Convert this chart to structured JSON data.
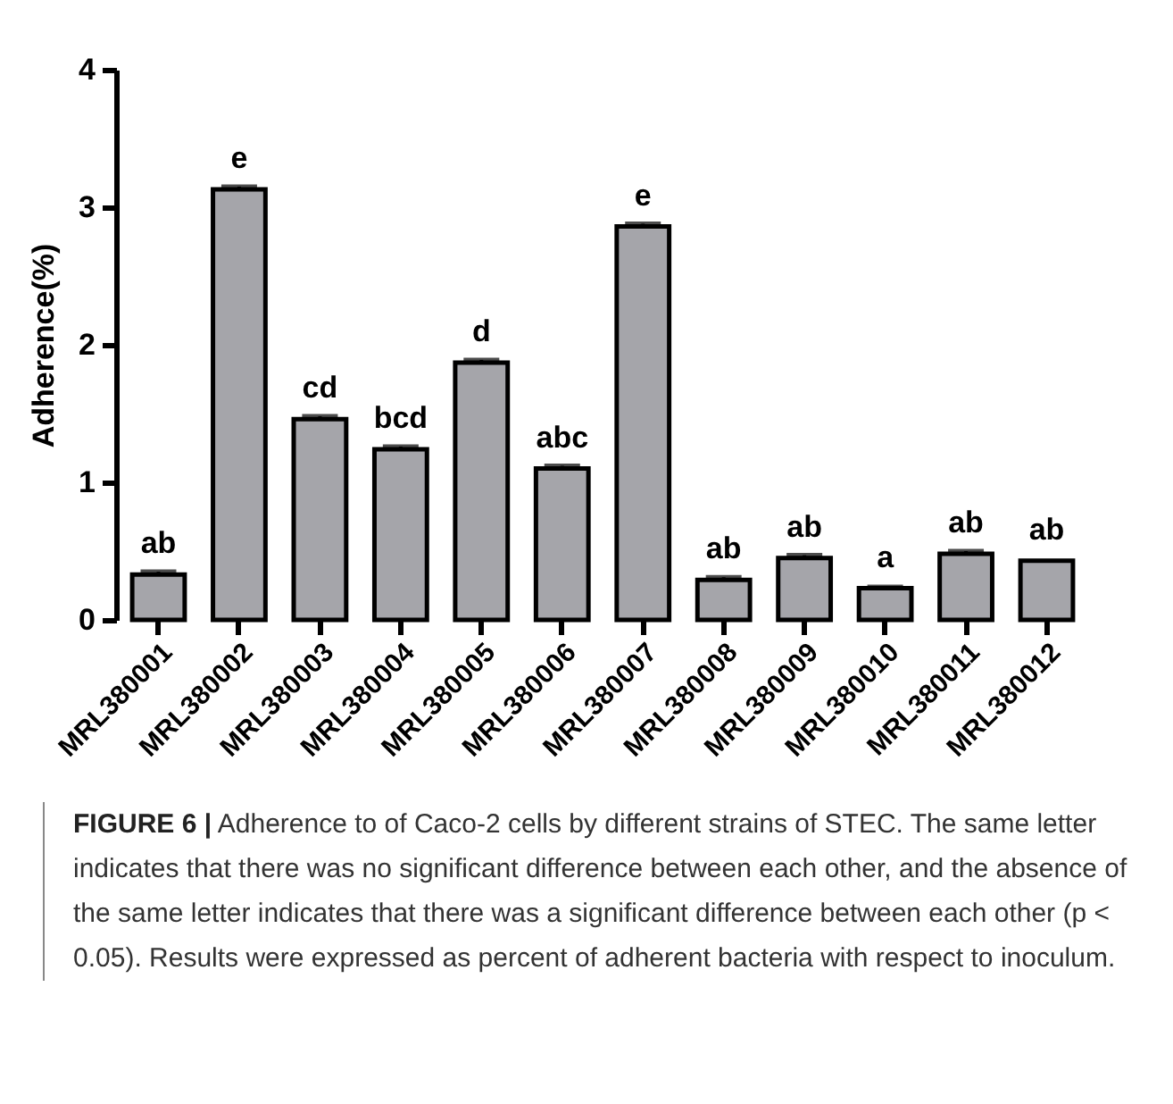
{
  "chart_data": {
    "type": "bar",
    "ylabel": "Adherence(%)",
    "categories": [
      "MRL380001",
      "MRL380002",
      "MRL380003",
      "MRL380004",
      "MRL380005",
      "MRL380006",
      "MRL380007",
      "MRL380008",
      "MRL380009",
      "MRL380010",
      "MRL380011",
      "MRL380012"
    ],
    "values": [
      0.33,
      3.13,
      1.46,
      1.24,
      1.87,
      1.1,
      2.86,
      0.29,
      0.45,
      0.23,
      0.48,
      0.43
    ],
    "errors": [
      0.02,
      0.02,
      0.02,
      0.02,
      0.02,
      0.02,
      0.02,
      0.02,
      0.02,
      0.01,
      0.02,
      null
    ],
    "color": "#a5a5aa",
    "ylim": [
      0,
      4
    ],
    "yticks": [
      0,
      1,
      2,
      3,
      4
    ],
    "grid": false,
    "annotations": [
      {
        "text": "ab",
        "x": "MRL380001",
        "y": 0.33
      },
      {
        "text": "e",
        "x": "MRL380002",
        "y": 3.13
      },
      {
        "text": "cd",
        "x": "MRL380003",
        "y": 1.46
      },
      {
        "text": "bcd",
        "x": "MRL380004",
        "y": 1.24
      },
      {
        "text": "d",
        "x": "MRL380005",
        "y": 1.87
      },
      {
        "text": "abc",
        "x": "MRL380006",
        "y": 1.1
      },
      {
        "text": "e",
        "x": "MRL380007",
        "y": 2.86
      },
      {
        "text": "ab",
        "x": "MRL380008",
        "y": 0.29
      },
      {
        "text": "ab",
        "x": "MRL380009",
        "y": 0.45
      },
      {
        "text": "a",
        "x": "MRL380010",
        "y": 0.23
      },
      {
        "text": "ab",
        "x": "MRL380011",
        "y": 0.48
      },
      {
        "text": "ab",
        "x": "MRL380012",
        "y": 0.43
      },
      "FIGURE 6 | Adherence to of Caco-2 cells by different strains of STEC. The same letter indicates that there was no significant difference between each other, and the absence of the same letter indicates that there was a significant difference between each other (p < 0.05). Results were expressed as percent of adherent bacteria with respect to inoculum."
    ]
  }
}
